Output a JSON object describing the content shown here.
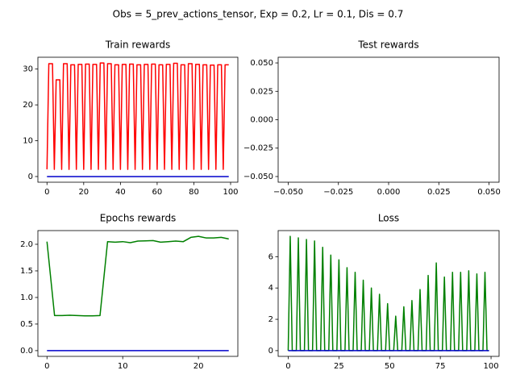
{
  "title": "Obs = 5_prev_actions_tensor, Exp = 0.2, Lr = 0.1, Dis = 0.7",
  "chart_data": [
    {
      "type": "line",
      "title": "Train rewards",
      "x": [
        0,
        1,
        2,
        3,
        4,
        5,
        6,
        7,
        8,
        9,
        10,
        11,
        12,
        13,
        14,
        15,
        16,
        17,
        18,
        19,
        20,
        21,
        22,
        23,
        24,
        25,
        26,
        27,
        28,
        29,
        30,
        31,
        32,
        33,
        34,
        35,
        36,
        37,
        38,
        39,
        40,
        41,
        42,
        43,
        44,
        45,
        46,
        47,
        48,
        49,
        50,
        51,
        52,
        53,
        54,
        55,
        56,
        57,
        58,
        59,
        60,
        61,
        62,
        63,
        64,
        65,
        66,
        67,
        68,
        69,
        70,
        71,
        72,
        73,
        74,
        75,
        76,
        77,
        78,
        79,
        80,
        81,
        82,
        83,
        84,
        85,
        86,
        87,
        88,
        89,
        90,
        91,
        92,
        93,
        94,
        95,
        96,
        97,
        98,
        99
      ],
      "series": [
        {
          "color": "#ff0000",
          "values": [
            2,
            31.5,
            31.5,
            31.5,
            2,
            27,
            27,
            27,
            2,
            31.5,
            31.5,
            31.5,
            2,
            31.2,
            31.2,
            31.2,
            2,
            31.3,
            31.3,
            31.3,
            2,
            31.4,
            31.4,
            31.4,
            2,
            31.3,
            31.3,
            31.3,
            2,
            31.7,
            31.7,
            31.7,
            2,
            31.5,
            31.5,
            31.5,
            2,
            31.2,
            31.2,
            31.2,
            2,
            31.3,
            31.3,
            31.3,
            2,
            31.4,
            31.4,
            31.4,
            2,
            31.2,
            31.2,
            31.2,
            2,
            31.3,
            31.3,
            31.3,
            2,
            31.4,
            31.4,
            31.4,
            2,
            31.2,
            31.2,
            31.2,
            2,
            31.3,
            31.3,
            31.3,
            2,
            31.6,
            31.6,
            31.6,
            2,
            31.2,
            31.2,
            31.2,
            2,
            31.5,
            31.5,
            31.5,
            2,
            31.3,
            31.3,
            31.3,
            2,
            31.2,
            31.2,
            31.2,
            2,
            31.1,
            31.1,
            31.1,
            2,
            31.2,
            31.2,
            31.2,
            2,
            31.2,
            31.2,
            31.2
          ]
        },
        {
          "color": "#0000cc",
          "values": [
            0,
            0,
            0,
            0,
            0,
            0,
            0,
            0,
            0,
            0,
            0,
            0,
            0,
            0,
            0,
            0,
            0,
            0,
            0,
            0,
            0,
            0,
            0,
            0,
            0,
            0,
            0,
            0,
            0,
            0,
            0,
            0,
            0,
            0,
            0,
            0,
            0,
            0,
            0,
            0,
            0,
            0,
            0,
            0,
            0,
            0,
            0,
            0,
            0,
            0,
            0,
            0,
            0,
            0,
            0,
            0,
            0,
            0,
            0,
            0,
            0,
            0,
            0,
            0,
            0,
            0,
            0,
            0,
            0,
            0,
            0,
            0,
            0,
            0,
            0,
            0,
            0,
            0,
            0,
            0,
            0,
            0,
            0,
            0,
            0,
            0,
            0,
            0,
            0,
            0,
            0,
            0,
            0,
            0,
            0,
            0,
            0,
            0,
            0,
            0
          ]
        }
      ],
      "xlim": [
        -4.95,
        103.95
      ],
      "xticks": [
        0,
        20,
        40,
        60,
        80,
        100
      ],
      "ylim": [
        -1.585,
        33.3
      ],
      "yticks": [
        0,
        10,
        20,
        30
      ]
    },
    {
      "type": "line",
      "title": "Test rewards",
      "series": [],
      "xlim": [
        -0.055,
        0.055
      ],
      "xticks": [
        {
          "value": -0.05,
          "label": "−0.050"
        },
        {
          "value": -0.025,
          "label": "−0.025"
        },
        {
          "value": 0,
          "label": "0.000"
        },
        0.025,
        {
          "value": 0.05,
          "label": "0.050"
        }
      ],
      "ylim": [
        -0.055,
        0.055
      ],
      "yticks": [
        {
          "value": -0.05,
          "label": "−0.050"
        },
        {
          "value": -0.025,
          "label": "−0.025"
        },
        {
          "value": 0,
          "label": "0.000"
        },
        0.025,
        {
          "value": 0.05,
          "label": "0.050"
        }
      ]
    },
    {
      "type": "line",
      "title": "Epochs rewards",
      "x": [
        0,
        1,
        2,
        3,
        4,
        5,
        6,
        7,
        8,
        9,
        10,
        11,
        12,
        13,
        14,
        15,
        16,
        17,
        18,
        19,
        20,
        21,
        22,
        23,
        24
      ],
      "series": [
        {
          "color": "#008000",
          "values": [
            2.05,
            0.66,
            0.66,
            0.665,
            0.66,
            0.655,
            0.655,
            0.66,
            2.05,
            2.04,
            2.05,
            2.03,
            2.06,
            2.065,
            2.07,
            2.04,
            2.05,
            2.06,
            2.05,
            2.13,
            2.15,
            2.12,
            2.12,
            2.13,
            2.1
          ]
        },
        {
          "color": "#0000cc",
          "values": [
            0,
            0,
            0,
            0,
            0,
            0,
            0,
            0,
            0,
            0,
            0,
            0,
            0,
            0,
            0,
            0,
            0,
            0,
            0,
            0,
            0,
            0,
            0,
            0,
            0
          ]
        }
      ],
      "xlim": [
        -1.2,
        25.2
      ],
      "xticks": [
        0,
        10,
        20
      ],
      "ylim": [
        -0.1075,
        2.2575
      ],
      "yticks": [
        {
          "value": 0,
          "label": "0.0"
        },
        0.5,
        {
          "value": 1,
          "label": "1.0"
        },
        1.5,
        {
          "value": 2,
          "label": "2.0"
        }
      ]
    },
    {
      "type": "line",
      "title": "Loss",
      "x": [
        0,
        1,
        2,
        3,
        4,
        5,
        6,
        7,
        8,
        9,
        10,
        11,
        12,
        13,
        14,
        15,
        16,
        17,
        18,
        19,
        20,
        21,
        22,
        23,
        24,
        25,
        26,
        27,
        28,
        29,
        30,
        31,
        32,
        33,
        34,
        35,
        36,
        37,
        38,
        39,
        40,
        41,
        42,
        43,
        44,
        45,
        46,
        47,
        48,
        49,
        50,
        51,
        52,
        53,
        54,
        55,
        56,
        57,
        58,
        59,
        60,
        61,
        62,
        63,
        64,
        65,
        66,
        67,
        68,
        69,
        70,
        71,
        72,
        73,
        74,
        75,
        76,
        77,
        78,
        79,
        80,
        81,
        82,
        83,
        84,
        85,
        86,
        87,
        88,
        89,
        90,
        91,
        92,
        93,
        94,
        95,
        96,
        97,
        98,
        99
      ],
      "series": [
        {
          "color": "#008000",
          "values": [
            0,
            7.3,
            0,
            0,
            0,
            7.2,
            0,
            0,
            0,
            7.1,
            0,
            0,
            0,
            7.0,
            0,
            0,
            0,
            6.6,
            0,
            0,
            0,
            6.1,
            0,
            0,
            0,
            5.8,
            0,
            0,
            0,
            5.3,
            0,
            0,
            0,
            5.0,
            0,
            0,
            0,
            4.5,
            0,
            0,
            0,
            4.0,
            0,
            0,
            0,
            3.6,
            0,
            0,
            0,
            3.0,
            0,
            0,
            0,
            2.2,
            0,
            0,
            0,
            2.8,
            0,
            0,
            0,
            3.2,
            0,
            0,
            0,
            3.9,
            0,
            0,
            0,
            4.8,
            0,
            0,
            0,
            5.6,
            0,
            0,
            0,
            4.7,
            0,
            0,
            0,
            5.0,
            0,
            0,
            0,
            5.0,
            0,
            0,
            0,
            5.1,
            0,
            0,
            0,
            4.9,
            0,
            0,
            0,
            5.0,
            0,
            0
          ]
        },
        {
          "color": "#0000cc",
          "values": [
            0,
            0,
            0,
            0,
            0,
            0,
            0,
            0,
            0,
            0,
            0,
            0,
            0,
            0,
            0,
            0,
            0,
            0,
            0,
            0,
            0,
            0,
            0,
            0,
            0,
            0,
            0,
            0,
            0,
            0,
            0,
            0,
            0,
            0,
            0,
            0,
            0,
            0,
            0,
            0,
            0,
            0,
            0,
            0,
            0,
            0,
            0,
            0,
            0,
            0,
            0,
            0,
            0,
            0,
            0,
            0,
            0,
            0,
            0,
            0,
            0,
            0,
            0,
            0,
            0,
            0,
            0,
            0,
            0,
            0,
            0,
            0,
            0,
            0,
            0,
            0,
            0,
            0,
            0,
            0,
            0,
            0,
            0,
            0,
            0,
            0,
            0,
            0,
            0,
            0,
            0,
            0,
            0,
            0,
            0,
            0,
            0,
            0,
            0,
            0
          ]
        }
      ],
      "xlim": [
        -4.95,
        103.95
      ],
      "xticks": [
        0,
        25,
        50,
        75,
        100
      ],
      "ylim": [
        -0.365,
        7.665
      ],
      "yticks": [
        0,
        2,
        4,
        6
      ]
    }
  ]
}
